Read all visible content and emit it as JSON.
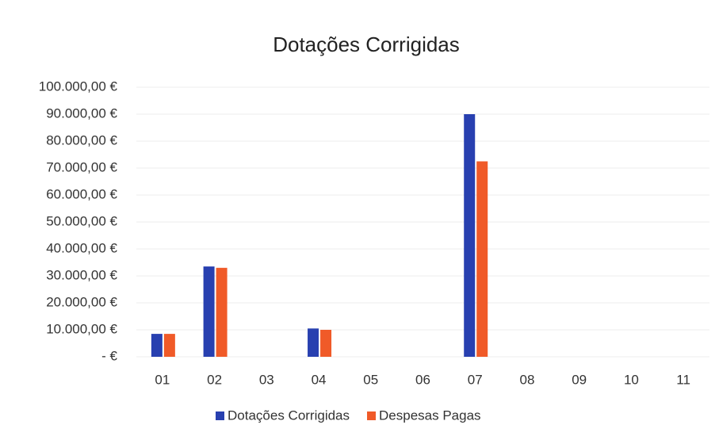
{
  "chart_data": {
    "type": "bar",
    "title": "Dotações Corrigidas",
    "categories": [
      "01",
      "02",
      "03",
      "04",
      "05",
      "06",
      "07",
      "08",
      "09",
      "10",
      "11"
    ],
    "series": [
      {
        "name": "Dotações Corrigidas",
        "color": "#2840b0",
        "values": [
          8500,
          33500,
          0,
          10500,
          0,
          0,
          90000,
          0,
          0,
          0,
          0
        ]
      },
      {
        "name": "Despesas Pagas",
        "color": "#f05a28",
        "values": [
          8500,
          33000,
          0,
          10000,
          0,
          0,
          72500,
          0,
          0,
          0,
          0
        ]
      }
    ],
    "ylim": [
      0,
      100000
    ],
    "yticks": [
      {
        "value": 0,
        "label": "-  €"
      },
      {
        "value": 10000,
        "label": "10.000,00 €"
      },
      {
        "value": 20000,
        "label": "20.000,00 €"
      },
      {
        "value": 30000,
        "label": "30.000,00 €"
      },
      {
        "value": 40000,
        "label": "40.000,00 €"
      },
      {
        "value": 50000,
        "label": "50.000,00 €"
      },
      {
        "value": 60000,
        "label": "60.000,00 €"
      },
      {
        "value": 70000,
        "label": "70.000,00 €"
      },
      {
        "value": 80000,
        "label": "80.000,00 €"
      },
      {
        "value": 90000,
        "label": "90.000,00 €"
      },
      {
        "value": 100000,
        "label": "100.000,00 €"
      }
    ],
    "grid": true,
    "legend": "bottom"
  }
}
